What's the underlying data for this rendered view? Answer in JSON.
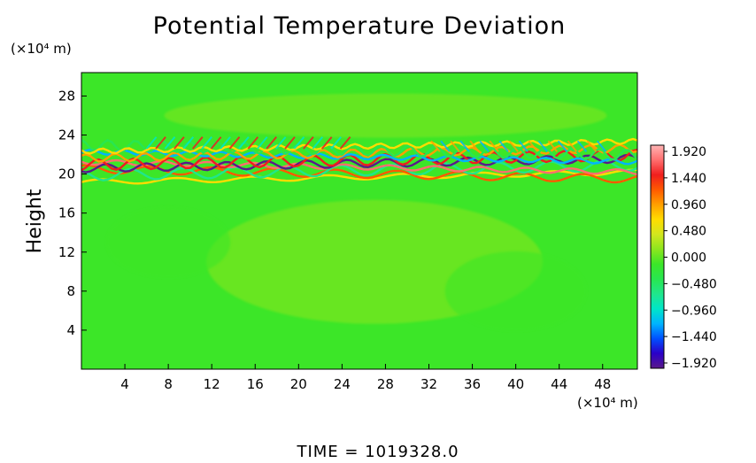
{
  "chart_data": {
    "type": "heatmap",
    "title": "Potential Temperature Deviation",
    "ylabel": "Height",
    "xlabel": "",
    "x_unit": "(×10⁴ m)",
    "y_unit": "(×10⁴ m)",
    "x_ticks": [
      "4",
      "8",
      "12",
      "16",
      "20",
      "24",
      "28",
      "32",
      "36",
      "40",
      "44",
      "48"
    ],
    "x_tick_values": [
      4,
      8,
      12,
      16,
      20,
      24,
      28,
      32,
      36,
      40,
      44,
      48
    ],
    "y_ticks": [
      "4",
      "8",
      "12",
      "16",
      "20",
      "24",
      "28"
    ],
    "y_tick_values": [
      4,
      8,
      12,
      16,
      20,
      24,
      28
    ],
    "xlim": [
      0,
      51.2
    ],
    "ylim": [
      0,
      30.4
    ],
    "colorbar": {
      "labels": [
        "1.920",
        "1.440",
        "0.960",
        "0.480",
        "0.000",
        "−0.480",
        "−0.960",
        "−1.440",
        "−1.920"
      ],
      "range": [
        -1.92,
        1.92
      ],
      "colors": [
        "#5a1a8a",
        "#2b00c8",
        "#0050ff",
        "#00b4ff",
        "#00e6c8",
        "#20e68c",
        "#28e650",
        "#3ce628",
        "#8ce61e",
        "#d2e61e",
        "#ffdc00",
        "#ffa000",
        "#ff5a00",
        "#f01e1e",
        "#ff6e6e",
        "#ffb4b4"
      ]
    },
    "field": {
      "background_value": 0.0,
      "perturbation_layer_y": [
        19.5,
        23.0
      ],
      "perturbation_peak_abs": 1.92
    },
    "time_label": "TIME  =  1019328.0"
  }
}
